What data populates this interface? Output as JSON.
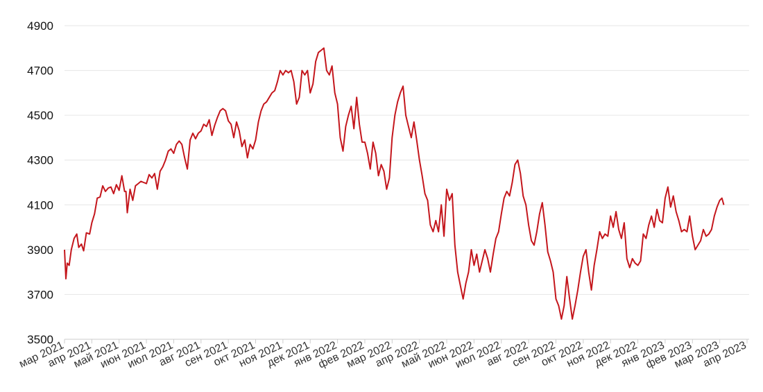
{
  "chart_data": {
    "type": "line",
    "title": "",
    "xlabel": "",
    "ylabel": "",
    "ylim": [
      3500,
      4900
    ],
    "y_ticks": [
      3500,
      3700,
      3900,
      4100,
      4300,
      4500,
      4700,
      4900
    ],
    "grid": true,
    "line_color": "#c4161c",
    "x_tick_labels": [
      "мар 2021",
      "апр 2021",
      "май 2021",
      "июн 2021",
      "июл 2021",
      "авг 2021",
      "сен 2021",
      "окт 2021",
      "ноя 2021",
      "дек 2021",
      "янв 2022",
      "фев 2022",
      "мар 2022",
      "апр 2022",
      "май 2022",
      "июн 2022",
      "июл 2022",
      "авг 2022",
      "сен 2022",
      "окт 2022",
      "ноя 2022",
      "дек 2022",
      "янв 2023",
      "фев 2023",
      "мар 2023",
      "апр 2023"
    ],
    "series": [
      {
        "values": [
          [
            0.0,
            3900
          ],
          [
            0.05,
            3770
          ],
          [
            0.1,
            3840
          ],
          [
            0.17,
            3830
          ],
          [
            0.25,
            3900
          ],
          [
            0.35,
            3950
          ],
          [
            0.45,
            3970
          ],
          [
            0.52,
            3910
          ],
          [
            0.62,
            3925
          ],
          [
            0.7,
            3895
          ],
          [
            0.8,
            3975
          ],
          [
            0.92,
            3970
          ],
          [
            1.0,
            4020
          ],
          [
            1.1,
            4060
          ],
          [
            1.2,
            4130
          ],
          [
            1.3,
            4135
          ],
          [
            1.4,
            4185
          ],
          [
            1.5,
            4160
          ],
          [
            1.6,
            4175
          ],
          [
            1.7,
            4180
          ],
          [
            1.8,
            4150
          ],
          [
            1.9,
            4190
          ],
          [
            2.0,
            4165
          ],
          [
            2.1,
            4230
          ],
          [
            2.2,
            4160
          ],
          [
            2.25,
            4160
          ],
          [
            2.3,
            4065
          ],
          [
            2.4,
            4170
          ],
          [
            2.5,
            4120
          ],
          [
            2.6,
            4185
          ],
          [
            2.7,
            4195
          ],
          [
            2.8,
            4205
          ],
          [
            2.9,
            4200
          ],
          [
            3.0,
            4195
          ],
          [
            3.1,
            4235
          ],
          [
            3.2,
            4220
          ],
          [
            3.3,
            4240
          ],
          [
            3.4,
            4170
          ],
          [
            3.5,
            4250
          ],
          [
            3.6,
            4270
          ],
          [
            3.7,
            4300
          ],
          [
            3.8,
            4340
          ],
          [
            3.9,
            4350
          ],
          [
            4.0,
            4330
          ],
          [
            4.1,
            4370
          ],
          [
            4.2,
            4385
          ],
          [
            4.3,
            4370
          ],
          [
            4.4,
            4310
          ],
          [
            4.5,
            4260
          ],
          [
            4.6,
            4390
          ],
          [
            4.7,
            4420
          ],
          [
            4.8,
            4395
          ],
          [
            4.9,
            4420
          ],
          [
            5.0,
            4430
          ],
          [
            5.1,
            4460
          ],
          [
            5.2,
            4450
          ],
          [
            5.3,
            4480
          ],
          [
            5.4,
            4410
          ],
          [
            5.5,
            4455
          ],
          [
            5.6,
            4490
          ],
          [
            5.7,
            4520
          ],
          [
            5.8,
            4530
          ],
          [
            5.9,
            4520
          ],
          [
            6.0,
            4475
          ],
          [
            6.1,
            4460
          ],
          [
            6.2,
            4400
          ],
          [
            6.3,
            4470
          ],
          [
            6.4,
            4430
          ],
          [
            6.5,
            4360
          ],
          [
            6.6,
            4390
          ],
          [
            6.7,
            4310
          ],
          [
            6.8,
            4370
          ],
          [
            6.9,
            4350
          ],
          [
            7.0,
            4390
          ],
          [
            7.1,
            4470
          ],
          [
            7.2,
            4520
          ],
          [
            7.3,
            4550
          ],
          [
            7.4,
            4560
          ],
          [
            7.5,
            4580
          ],
          [
            7.6,
            4600
          ],
          [
            7.7,
            4610
          ],
          [
            7.8,
            4650
          ],
          [
            7.9,
            4700
          ],
          [
            8.0,
            4680
          ],
          [
            8.1,
            4700
          ],
          [
            8.2,
            4690
          ],
          [
            8.3,
            4700
          ],
          [
            8.4,
            4650
          ],
          [
            8.5,
            4550
          ],
          [
            8.6,
            4580
          ],
          [
            8.7,
            4700
          ],
          [
            8.8,
            4680
          ],
          [
            8.9,
            4700
          ],
          [
            9.0,
            4600
          ],
          [
            9.1,
            4640
          ],
          [
            9.2,
            4740
          ],
          [
            9.3,
            4780
          ],
          [
            9.4,
            4790
          ],
          [
            9.5,
            4800
          ],
          [
            9.6,
            4700
          ],
          [
            9.7,
            4680
          ],
          [
            9.8,
            4720
          ],
          [
            9.9,
            4600
          ],
          [
            10.0,
            4550
          ],
          [
            10.1,
            4400
          ],
          [
            10.2,
            4340
          ],
          [
            10.3,
            4450
          ],
          [
            10.4,
            4500
          ],
          [
            10.5,
            4540
          ],
          [
            10.6,
            4440
          ],
          [
            10.7,
            4580
          ],
          [
            10.8,
            4460
          ],
          [
            10.9,
            4380
          ],
          [
            11.0,
            4380
          ],
          [
            11.1,
            4330
          ],
          [
            11.2,
            4260
          ],
          [
            11.3,
            4380
          ],
          [
            11.4,
            4330
          ],
          [
            11.5,
            4230
          ],
          [
            11.6,
            4280
          ],
          [
            11.7,
            4250
          ],
          [
            11.8,
            4170
          ],
          [
            11.9,
            4220
          ],
          [
            12.0,
            4400
          ],
          [
            12.1,
            4500
          ],
          [
            12.2,
            4560
          ],
          [
            12.3,
            4600
          ],
          [
            12.4,
            4630
          ],
          [
            12.5,
            4500
          ],
          [
            12.6,
            4450
          ],
          [
            12.7,
            4400
          ],
          [
            12.8,
            4470
          ],
          [
            12.9,
            4390
          ],
          [
            13.0,
            4300
          ],
          [
            13.1,
            4230
          ],
          [
            13.2,
            4150
          ],
          [
            13.3,
            4120
          ],
          [
            13.4,
            4010
          ],
          [
            13.5,
            3980
          ],
          [
            13.6,
            4030
          ],
          [
            13.7,
            3980
          ],
          [
            13.8,
            4100
          ],
          [
            13.9,
            3960
          ],
          [
            14.0,
            4170
          ],
          [
            14.1,
            4120
          ],
          [
            14.2,
            4150
          ],
          [
            14.3,
            3920
          ],
          [
            14.4,
            3800
          ],
          [
            14.5,
            3740
          ],
          [
            14.6,
            3680
          ],
          [
            14.7,
            3750
          ],
          [
            14.8,
            3800
          ],
          [
            14.9,
            3900
          ],
          [
            15.0,
            3830
          ],
          [
            15.1,
            3880
          ],
          [
            15.2,
            3800
          ],
          [
            15.3,
            3850
          ],
          [
            15.4,
            3900
          ],
          [
            15.5,
            3860
          ],
          [
            15.6,
            3800
          ],
          [
            15.7,
            3880
          ],
          [
            15.8,
            3950
          ],
          [
            15.9,
            3980
          ],
          [
            16.0,
            4060
          ],
          [
            16.1,
            4130
          ],
          [
            16.2,
            4160
          ],
          [
            16.3,
            4140
          ],
          [
            16.4,
            4200
          ],
          [
            16.5,
            4280
          ],
          [
            16.6,
            4300
          ],
          [
            16.7,
            4240
          ],
          [
            16.8,
            4140
          ],
          [
            16.9,
            4100
          ],
          [
            17.0,
            4010
          ],
          [
            17.1,
            3940
          ],
          [
            17.2,
            3920
          ],
          [
            17.3,
            3980
          ],
          [
            17.4,
            4060
          ],
          [
            17.5,
            4110
          ],
          [
            17.6,
            4010
          ],
          [
            17.7,
            3890
          ],
          [
            17.8,
            3850
          ],
          [
            17.9,
            3800
          ],
          [
            18.0,
            3680
          ],
          [
            18.1,
            3650
          ],
          [
            18.2,
            3590
          ],
          [
            18.3,
            3650
          ],
          [
            18.4,
            3780
          ],
          [
            18.5,
            3680
          ],
          [
            18.6,
            3590
          ],
          [
            18.7,
            3650
          ],
          [
            18.8,
            3720
          ],
          [
            18.9,
            3800
          ],
          [
            19.0,
            3870
          ],
          [
            19.1,
            3900
          ],
          [
            19.2,
            3800
          ],
          [
            19.3,
            3720
          ],
          [
            19.4,
            3830
          ],
          [
            19.5,
            3900
          ],
          [
            19.6,
            3980
          ],
          [
            19.7,
            3950
          ],
          [
            19.8,
            3970
          ],
          [
            19.9,
            3960
          ],
          [
            20.0,
            4050
          ],
          [
            20.1,
            4000
          ],
          [
            20.2,
            4070
          ],
          [
            20.3,
            3990
          ],
          [
            20.4,
            3950
          ],
          [
            20.5,
            4020
          ],
          [
            20.6,
            3860
          ],
          [
            20.7,
            3820
          ],
          [
            20.8,
            3860
          ],
          [
            20.9,
            3840
          ],
          [
            21.0,
            3830
          ],
          [
            21.1,
            3850
          ],
          [
            21.2,
            3970
          ],
          [
            21.3,
            3950
          ],
          [
            21.4,
            4010
          ],
          [
            21.5,
            4050
          ],
          [
            21.6,
            4000
          ],
          [
            21.7,
            4080
          ],
          [
            21.8,
            4030
          ],
          [
            21.9,
            4020
          ],
          [
            22.0,
            4130
          ],
          [
            22.1,
            4180
          ],
          [
            22.2,
            4090
          ],
          [
            22.3,
            4140
          ],
          [
            22.4,
            4070
          ],
          [
            22.5,
            4030
          ],
          [
            22.6,
            3980
          ],
          [
            22.7,
            3990
          ],
          [
            22.8,
            3980
          ],
          [
            22.9,
            4050
          ],
          [
            23.0,
            3960
          ],
          [
            23.1,
            3900
          ],
          [
            23.2,
            3920
          ],
          [
            23.3,
            3940
          ],
          [
            23.4,
            3990
          ],
          [
            23.5,
            3960
          ],
          [
            23.6,
            3970
          ],
          [
            23.7,
            3990
          ],
          [
            23.8,
            4050
          ],
          [
            23.9,
            4090
          ],
          [
            24.0,
            4120
          ],
          [
            24.08,
            4130
          ],
          [
            24.15,
            4100
          ]
        ]
      }
    ]
  }
}
